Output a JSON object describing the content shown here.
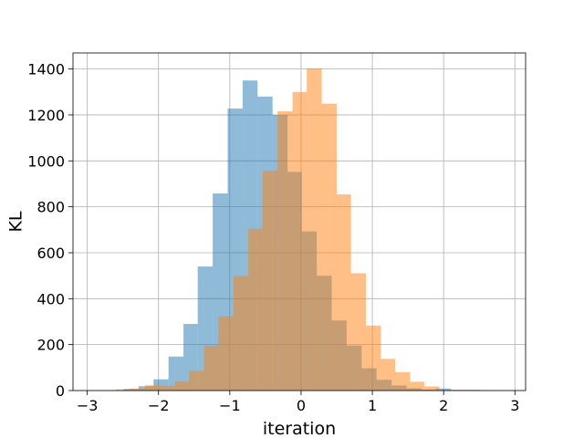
{
  "chart_data": {
    "type": "bar",
    "subtype": "overlaid-histogram",
    "title": "",
    "xlabel": "iteration",
    "ylabel": "KL",
    "xlim": [
      -3.2,
      3.15
    ],
    "ylim": [
      0,
      1470
    ],
    "grid": true,
    "xticks": [
      -3,
      -2,
      -1,
      0,
      1,
      2,
      3
    ],
    "xtick_labels": [
      "−3",
      "−2",
      "−1",
      "0",
      "1",
      "2",
      "3"
    ],
    "yticks": [
      0,
      200,
      400,
      600,
      800,
      1000,
      1200,
      1400
    ],
    "ytick_labels": [
      "0",
      "200",
      "400",
      "600",
      "800",
      "1000",
      "1200",
      "1400"
    ],
    "series": [
      {
        "color": "#1f77b4",
        "opacity": 0.5,
        "bin_edges": [
          -2.9,
          -2.7,
          -2.49,
          -2.28,
          -2.07,
          -1.86,
          -1.65,
          -1.45,
          -1.24,
          -1.03,
          -0.82,
          -0.61,
          -0.4,
          -0.19,
          0.01,
          0.22,
          0.43,
          0.64,
          0.85,
          1.06,
          1.27,
          1.48,
          1.69,
          1.89,
          2.1,
          2.31,
          2.52,
          2.73
        ],
        "values": [
          1,
          2,
          7,
          19,
          49,
          148,
          290,
          540,
          858,
          1228,
          1350,
          1280,
          1200,
          952,
          693,
          500,
          305,
          196,
          97,
          47,
          22,
          10,
          4,
          9,
          3,
          3,
          1
        ]
      },
      {
        "color": "#ff7f0e",
        "opacity": 0.5,
        "bin_edges": [
          -2.6,
          -2.4,
          -2.19,
          -1.98,
          -1.77,
          -1.57,
          -1.36,
          -1.16,
          -0.95,
          -0.74,
          -0.54,
          -0.33,
          -0.12,
          0.08,
          0.29,
          0.5,
          0.7,
          0.91,
          1.12,
          1.32,
          1.53,
          1.73,
          1.94
        ],
        "values": [
          5,
          9,
          23,
          21,
          39,
          86,
          195,
          323,
          499,
          704,
          957,
          1216,
          1300,
          1403,
          1249,
          854,
          511,
          283,
          138,
          80,
          38,
          18
        ]
      }
    ]
  }
}
